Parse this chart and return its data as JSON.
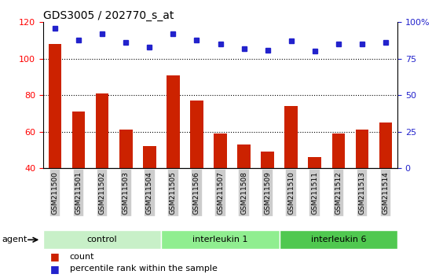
{
  "title": "GDS3005 / 202770_s_at",
  "samples": [
    "GSM211500",
    "GSM211501",
    "GSM211502",
    "GSM211503",
    "GSM211504",
    "GSM211505",
    "GSM211506",
    "GSM211507",
    "GSM211508",
    "GSM211509",
    "GSM211510",
    "GSM211511",
    "GSM211512",
    "GSM211513",
    "GSM211514"
  ],
  "counts": [
    108,
    71,
    81,
    61,
    52,
    91,
    77,
    59,
    53,
    49,
    74,
    46,
    59,
    61,
    65
  ],
  "percentiles": [
    96,
    88,
    92,
    86,
    83,
    92,
    88,
    85,
    82,
    81,
    87,
    80,
    85,
    85,
    86
  ],
  "groups": [
    {
      "label": "control",
      "start": 0,
      "end": 5,
      "color": "#c8f0c8"
    },
    {
      "label": "interleukin 1",
      "start": 5,
      "end": 10,
      "color": "#90ee90"
    },
    {
      "label": "interleukin 6",
      "start": 10,
      "end": 15,
      "color": "#50c850"
    }
  ],
  "bar_color": "#cc2200",
  "dot_color": "#2222cc",
  "left_ylim": [
    40,
    120
  ],
  "left_yticks": [
    40,
    60,
    80,
    100,
    120
  ],
  "right_ylim": [
    0,
    100
  ],
  "right_yticks": [
    0,
    25,
    50,
    75,
    100
  ],
  "right_yticklabels": [
    "0",
    "25",
    "50",
    "75",
    "100%"
  ],
  "grid_values": [
    60,
    80,
    100
  ],
  "agent_label": "agent",
  "legend_count_label": "count",
  "legend_percentile_label": "percentile rank within the sample",
  "bar_width": 0.55
}
